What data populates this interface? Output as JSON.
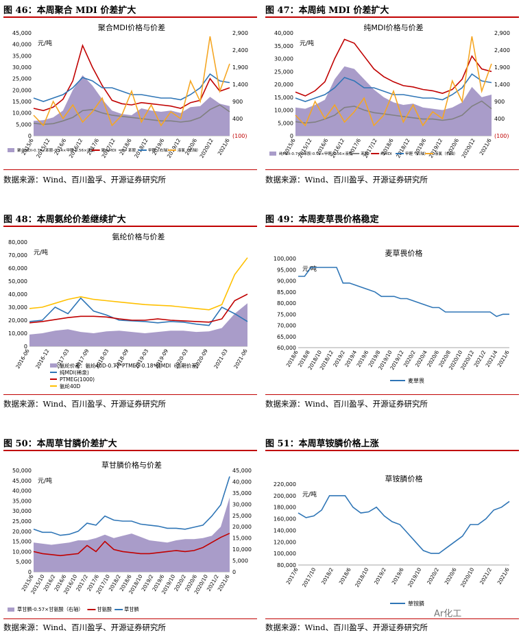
{
  "figures": [
    {
      "title": "图 46：本周聚合 MDI 价差扩大",
      "source": "数据来源：Wind、百川盈孚、开源证券研究所"
    },
    {
      "title": "图 47：本周纯 MDI 价差扩大",
      "source": "数据来源：Wind、百川盈孚、开源证券研究所"
    },
    {
      "title": "图 48：本周氨纶价差继续扩大",
      "source": "数据来源：Wind、百川盈孚、开源证券研究所"
    },
    {
      "title": "图 49：本周麦草畏价格稳定",
      "source": "数据来源：Wind、百川盈孚、开源证券研究所"
    },
    {
      "title": "图 50：本周草甘膦价差扩大",
      "source": "数据来源：Wind、百川盈孚、开源证券研究所"
    },
    {
      "title": "图 51：本周草铵膦价格上涨",
      "source": "数据来源：Wind、百川盈孚、开源证券研究所"
    }
  ],
  "watermark": "Ar化工",
  "colors": {
    "rule": "#c00000",
    "area": "#a99cc9",
    "red": "#c00000",
    "blue": "#2e75b6",
    "gray": "#808080",
    "orange": "#f5a623",
    "yellow": "#ffc000"
  },
  "chart_data": [
    {
      "type": "line",
      "title": "聚合MDI价格与价差",
      "unit": "元/吨",
      "x_ticks": [
        "2015/6",
        "2015/12",
        "2016/6",
        "2016/12",
        "2017/6",
        "2017/12",
        "2018/6",
        "2018/12",
        "2019/6",
        "2019/12",
        "2020/6",
        "2020/12",
        "2021/6"
      ],
      "ylim": [
        0,
        45000
      ],
      "y_ticks": [
        "0",
        "5,000",
        "10,000",
        "15,000",
        "20,000",
        "25,000",
        "30,000",
        "35,000",
        "40,000",
        "45,000"
      ],
      "y2_ticks": [
        "(100)",
        "400",
        "900",
        "1,400",
        "1,900",
        "2,400",
        "2,900"
      ],
      "y2lim": [
        -100,
        2900
      ],
      "series": [
        {
          "name": "聚合MDI-0.74×苯胺-0.14×甲醛-0.56×液氯",
          "kind": "area",
          "color": "#a99cc9",
          "values": [
            6500,
            6800,
            8000,
            11000,
            20000,
            26500,
            22000,
            16000,
            11000,
            9500,
            9000,
            12000,
            11000,
            10500,
            11000,
            10000,
            12500,
            13000,
            17000,
            14000,
            13000
          ]
        },
        {
          "name": "聚合MDI",
          "kind": "line",
          "color": "#c00000",
          "values": [
            12000,
            11000,
            12500,
            16000,
            24000,
            39500,
            30000,
            22000,
            15500,
            14000,
            13500,
            14500,
            14000,
            13500,
            13000,
            12000,
            14500,
            15500,
            25000,
            19500,
            21000
          ]
        },
        {
          "name": "苯胺",
          "kind": "line",
          "color": "#808080",
          "values": [
            5500,
            5000,
            5300,
            6500,
            8000,
            11000,
            11500,
            10000,
            9000,
            8500,
            8000,
            7500,
            7000,
            6500,
            6500,
            6000,
            6500,
            8000,
            11500,
            13500,
            10500
          ]
        },
        {
          "name": "甲醛（右轴）",
          "kind": "line",
          "axis": "right",
          "color": "#2e75b6",
          "values": [
            1000,
            900,
            1000,
            1100,
            1300,
            1600,
            1500,
            1300,
            1300,
            1200,
            1100,
            1100,
            1050,
            1000,
            1000,
            950,
            1100,
            1300,
            1700,
            1500,
            1450
          ]
        },
        {
          "name": "液氯（右轴）",
          "kind": "line",
          "axis": "right",
          "color": "#f5a623",
          "values": [
            500,
            200,
            900,
            400,
            800,
            300,
            600,
            1000,
            200,
            500,
            1200,
            300,
            800,
            200,
            600,
            400,
            1500,
            900,
            2800,
            1200,
            2000
          ]
        }
      ],
      "legend": [
        "聚合MDI-0.74×苯胺-0.14×甲醛-0.56×液氯",
        "聚合MDI",
        "苯胺",
        "甲醛（右轴）",
        "液氯（右轴）"
      ]
    },
    {
      "type": "line",
      "title": "纯MDI价格与价差",
      "unit": "元/吨",
      "x_ticks": [
        "2015/6",
        "2015/12",
        "2016/6",
        "2016/12",
        "2017/6",
        "2017/12",
        "2018/6",
        "2018/12",
        "2019/6",
        "2019/12",
        "2020/6",
        "2020/12",
        "2021/6"
      ],
      "ylim": [
        0,
        40000
      ],
      "y_ticks": [
        "0",
        "5,000",
        "10,000",
        "15,000",
        "20,000",
        "25,000",
        "30,000",
        "35,000",
        "40,000"
      ],
      "y2_ticks": [
        "(100)",
        "400",
        "900",
        "1,400",
        "1,900",
        "2,400",
        "2,900"
      ],
      "y2lim": [
        -100,
        2900
      ],
      "series": [
        {
          "name": "纯MDI-0.74×苯胺-0.14×甲醛-0.56×液氯",
          "kind": "area",
          "color": "#a99cc9",
          "values": [
            11000,
            10500,
            12000,
            14000,
            22000,
            27000,
            26000,
            22000,
            18000,
            15000,
            13000,
            12000,
            12500,
            11000,
            10500,
            10000,
            11000,
            13000,
            19000,
            15000,
            16000
          ]
        },
        {
          "name": "苯胺",
          "kind": "line",
          "color": "#808080",
          "values": [
            5500,
            5000,
            5300,
            6500,
            8000,
            11000,
            11500,
            10000,
            9000,
            8500,
            8000,
            7500,
            7000,
            6500,
            6500,
            6000,
            6500,
            8000,
            11500,
            13500,
            10500
          ]
        },
        {
          "name": "纯MDI",
          "kind": "line",
          "color": "#c00000",
          "values": [
            17000,
            15500,
            17500,
            21000,
            30000,
            37500,
            36000,
            31000,
            26000,
            23000,
            21000,
            19500,
            19000,
            18000,
            17500,
            16500,
            18000,
            22000,
            31000,
            26000,
            25000
          ]
        },
        {
          "name": "甲醛（右轴）",
          "kind": "line",
          "axis": "right",
          "color": "#2e75b6",
          "values": [
            1000,
            900,
            1000,
            1100,
            1300,
            1600,
            1500,
            1300,
            1300,
            1200,
            1100,
            1100,
            1050,
            1000,
            1000,
            950,
            1100,
            1300,
            1700,
            1500,
            1450
          ]
        },
        {
          "name": "液氯（右轴）",
          "kind": "line",
          "axis": "right",
          "color": "#f5a623",
          "values": [
            500,
            200,
            900,
            400,
            800,
            300,
            600,
            1000,
            200,
            500,
            1200,
            300,
            800,
            200,
            600,
            400,
            1500,
            900,
            2800,
            1200,
            2000
          ]
        }
      ],
      "legend": [
        "纯MDI-0.74×苯胺-0.14×甲醛-0.56×液氯",
        "苯胺",
        "纯MDI",
        "甲醛（右轴）",
        "液氯（右轴）"
      ]
    },
    {
      "type": "line",
      "title": "氨纶价格与价差",
      "unit": "元/吨",
      "x_ticks": [
        "2016-06",
        "2016-12",
        "2017-03",
        "2017-09",
        "2018-03",
        "2018-09",
        "2019-03",
        "2019-09",
        "2020-03",
        "2020-09",
        "2021-03",
        "2021-06"
      ],
      "ylim": [
        0,
        80000
      ],
      "y_ticks": [
        "0",
        "10,000",
        "20,000",
        "30,000",
        "40,000",
        "50,000",
        "60,000",
        "70,000",
        "80,000"
      ],
      "series": [
        {
          "name": "氨纶价差：氨纶40D-0.77*PTMEG-0.18*纯MDI（当期价差）",
          "kind": "area",
          "color": "#a99cc9",
          "values": [
            9000,
            10000,
            12000,
            13000,
            11000,
            10000,
            11500,
            12000,
            11000,
            10000,
            11000,
            12000,
            12000,
            11000,
            11500,
            14000,
            25000,
            33000
          ]
        },
        {
          "name": "纯MDI(稀泉)",
          "kind": "line",
          "color": "#2e75b6",
          "values": [
            19000,
            20000,
            30000,
            25000,
            37000,
            27000,
            24000,
            20000,
            19500,
            19000,
            18000,
            19000,
            18500,
            17000,
            16000,
            30000,
            25000,
            19000
          ]
        },
        {
          "name": "PTMEG(1000)",
          "kind": "line",
          "color": "#c00000",
          "values": [
            18000,
            19000,
            20500,
            22000,
            23000,
            23000,
            22500,
            21000,
            20000,
            20000,
            21000,
            20000,
            19500,
            19000,
            18500,
            21000,
            35000,
            40000
          ]
        },
        {
          "name": "氨纶40D",
          "kind": "line",
          "color": "#ffc000",
          "values": [
            29000,
            30000,
            33000,
            36000,
            38000,
            36000,
            35000,
            34000,
            33000,
            32000,
            31500,
            31000,
            30000,
            29000,
            28000,
            32000,
            55000,
            68000
          ]
        }
      ],
      "legend": [
        "氨纶价差：氨纶40D-0.77*PTMEG-0.18*纯MDI（当期价差）",
        "纯MDI(稀泉)",
        "PTMEG(1000)",
        "氨纶40D"
      ]
    },
    {
      "type": "line",
      "title": "麦草畏价格",
      "unit": "元/吨",
      "x_ticks": [
        "2018/6",
        "2018/8",
        "2018/10",
        "2018/12",
        "2019/2",
        "2019/4",
        "2019/6",
        "2019/8",
        "2019/10",
        "2019/12",
        "2020/2",
        "2020/4",
        "2020/6",
        "2020/8",
        "2020/10",
        "2020/12",
        "2021/2",
        "2021/4",
        "2021/6"
      ],
      "ylim": [
        60000,
        100000
      ],
      "y_ticks": [
        "60,000",
        "65,000",
        "70,000",
        "75,000",
        "80,000",
        "85,000",
        "90,000",
        "95,000",
        "100,000"
      ],
      "series": [
        {
          "name": "麦草畏",
          "kind": "line",
          "color": "#2e75b6",
          "values": [
            92000,
            92000,
            96000,
            96000,
            96000,
            96000,
            96000,
            89000,
            89000,
            88000,
            87000,
            86000,
            85000,
            83000,
            83000,
            83000,
            82000,
            82000,
            81000,
            80000,
            79000,
            78000,
            78000,
            76000,
            76000,
            76000,
            76000,
            76000,
            76000,
            76000,
            76000,
            74000,
            75000,
            75000
          ]
        }
      ],
      "legend": [
        "麦草畏"
      ]
    },
    {
      "type": "line",
      "title": "草甘膦价格与价差",
      "unit": "元/吨",
      "x_ticks": [
        "2015/6",
        "2015/10",
        "2016/2",
        "2016/6",
        "2016/10",
        "2017/2",
        "2017/6",
        "2017/10",
        "2018/2",
        "2018/6",
        "2018/10",
        "2019/2",
        "2019/6",
        "2019/10",
        "2020/2",
        "2020/6",
        "2020/10",
        "2021/2",
        "2021/6"
      ],
      "ylim": [
        0,
        50000
      ],
      "y_ticks": [
        "0",
        "5,000",
        "10,000",
        "15,000",
        "20,000",
        "25,000",
        "30,000",
        "35,000",
        "40,000",
        "45,000",
        "50,000"
      ],
      "y2_ticks": [
        "0",
        "5,000",
        "10,000",
        "15,000",
        "20,000",
        "25,000",
        "30,000",
        "35,000",
        "40,000",
        "45,000"
      ],
      "y2lim": [
        0,
        45000
      ],
      "series": [
        {
          "name": "草甘膦-0.57×甘氨酸（右轴）",
          "kind": "area",
          "axis": "right",
          "color": "#a99cc9",
          "values": [
            13000,
            12500,
            12000,
            12500,
            13000,
            14000,
            14000,
            15000,
            16500,
            15000,
            16000,
            17000,
            15500,
            14000,
            13500,
            13000,
            14000,
            14500,
            14500,
            15000,
            16000,
            20000,
            33000
          ]
        },
        {
          "name": "甘氨酸",
          "kind": "line",
          "color": "#c00000",
          "values": [
            10000,
            9000,
            8500,
            8000,
            8500,
            9000,
            13000,
            10000,
            15000,
            11000,
            10000,
            9500,
            9000,
            9000,
            9500,
            10000,
            10500,
            10000,
            10500,
            12000,
            14500,
            17000,
            19000
          ]
        },
        {
          "name": "草甘膦",
          "kind": "line",
          "color": "#2e75b6",
          "values": [
            21000,
            19500,
            19500,
            18000,
            18500,
            20000,
            24000,
            23000,
            27500,
            25500,
            25000,
            25000,
            23500,
            23000,
            22500,
            21500,
            21500,
            21000,
            22000,
            23000,
            27500,
            33000,
            47000
          ]
        }
      ],
      "legend": [
        "草甘膦-0.57×甘氨酸（右轴）",
        "甘氨酸",
        "草甘膦"
      ]
    },
    {
      "type": "line",
      "title": "草铵膦价格",
      "unit": "元/吨",
      "x_ticks": [
        "2017/6",
        "2017/10",
        "2018/2",
        "2018/6",
        "2018/10",
        "2019/2",
        "2019/6",
        "2019/10",
        "2020/2",
        "2020/6",
        "2020/10",
        "2021/2",
        "2021/6"
      ],
      "ylim": [
        80000,
        220000
      ],
      "y_ticks": [
        "80,000",
        "100,000",
        "120,000",
        "140,000",
        "160,000",
        "180,000",
        "200,000",
        "220,000"
      ],
      "series": [
        {
          "name": "草铵膦",
          "kind": "line",
          "color": "#2e75b6",
          "values": [
            170000,
            162000,
            165000,
            175000,
            200000,
            200000,
            200000,
            180000,
            170000,
            172000,
            180000,
            165000,
            155000,
            150000,
            135000,
            120000,
            105000,
            100000,
            100000,
            110000,
            120000,
            130000,
            150000,
            150000,
            160000,
            175000,
            180000,
            190000
          ]
        }
      ],
      "legend": [
        "草铵膦"
      ]
    }
  ]
}
